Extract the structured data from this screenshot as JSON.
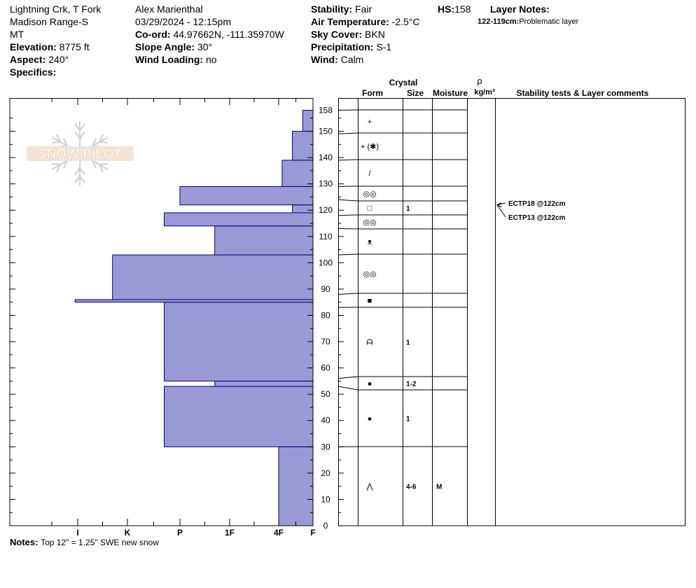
{
  "header": {
    "location_line1": "Lightning Crk, T Fork",
    "location_line2": "Madison Range-S",
    "state": "MT",
    "elevation_label": "Elevation:",
    "elevation_value": "8775 ft",
    "aspect_label": "Aspect:",
    "aspect_value": "240°",
    "specifics_label": "Specifics:",
    "observer": "Alex Marienthal",
    "datetime": "03/29/2024 - 12:15pm",
    "coord_label": "Co-ord:",
    "coord_value": "44.97662N, -111.35970W",
    "slope_label": "Slope Angle:",
    "slope_value": "30°",
    "wind_loading_label": "Wind Loading:",
    "wind_loading_value": "no",
    "stability_label": "Stability:",
    "stability_value": "Fair",
    "air_temp_label": "Air Temperature:",
    "air_temp_value": "-2.5°C",
    "sky_label": "Sky Cover:",
    "sky_value": "BKN",
    "precip_label": "Precipitation:",
    "precip_value": "S-1",
    "wind_label": "Wind:",
    "wind_value": "Calm",
    "hs_label": "HS:",
    "hs_value": "158",
    "layer_notes_label": "Layer Notes:",
    "layer_note_range": "122-119cm:",
    "layer_note_text": "Problematic layer"
  },
  "logo_text": "SNOW PILOT",
  "columns": {
    "crystal": "Crystal",
    "form": "Form",
    "size": "Size",
    "moisture": "Moisture",
    "rho": "ρ",
    "density_unit": "kg/m³",
    "stability": "Stability tests & Layer comments"
  },
  "notes_label": "Notes:",
  "notes_text": "Top 12\" = 1.25\" SWE new snow",
  "colors": {
    "fill": "#9999d6",
    "edge": "#000080"
  },
  "chart_data": {
    "type": "bar",
    "orientation": "horizontal",
    "x_categories": [
      "I",
      "K",
      "P",
      "1F",
      "4F",
      "F"
    ],
    "x_ticks": [
      5,
      4,
      3,
      2,
      1,
      0
    ],
    "y_range": [
      0,
      158
    ],
    "y_ticks": [
      0,
      10,
      20,
      30,
      40,
      50,
      60,
      70,
      80,
      90,
      100,
      110,
      120,
      130,
      140,
      150,
      158
    ],
    "ylabel": "",
    "layers": [
      {
        "bottom": 0,
        "top": 30,
        "hardness": 1.0
      },
      {
        "bottom": 30,
        "top": 53,
        "hardness": 3.3
      },
      {
        "bottom": 53,
        "top": 55,
        "hardness": 2.3
      },
      {
        "bottom": 55,
        "top": 85,
        "hardness": 3.3
      },
      {
        "bottom": 85,
        "top": 86,
        "hardness": 5.05
      },
      {
        "bottom": 86,
        "top": 103,
        "hardness": 4.3
      },
      {
        "bottom": 103,
        "top": 114,
        "hardness": 2.3
      },
      {
        "bottom": 114,
        "top": 119,
        "hardness": 3.3
      },
      {
        "bottom": 119,
        "top": 122,
        "hardness": 0.6
      },
      {
        "bottom": 122,
        "top": 129,
        "hardness": 3.0
      },
      {
        "bottom": 129,
        "top": 139,
        "hardness": 0.9
      },
      {
        "bottom": 139,
        "top": 150,
        "hardness": 0.6
      },
      {
        "bottom": 150,
        "top": 158,
        "hardness": 0.3
      }
    ],
    "crystal_layers": [
      {
        "bottom": 0,
        "top": 30,
        "form": "⋀",
        "size": "4-6",
        "moisture": "M"
      },
      {
        "bottom": 30,
        "top": 53,
        "form": "●",
        "size": "1",
        "moisture": ""
      },
      {
        "bottom": 53,
        "top": 56,
        "form": "●",
        "size": "1-2",
        "moisture": ""
      },
      {
        "bottom": 56,
        "top": 83,
        "form": "ᗩ",
        "size": "1",
        "moisture": ""
      },
      {
        "bottom": 83,
        "top": 88,
        "form": "■",
        "size": "",
        "moisture": ""
      },
      {
        "bottom": 88,
        "top": 103,
        "form": "◎◎",
        "size": "",
        "moisture": ""
      },
      {
        "bottom": 103,
        "top": 113,
        "form": "ᴥ",
        "size": "",
        "moisture": ""
      },
      {
        "bottom": 113,
        "top": 118,
        "form": "◎◎",
        "size": "",
        "moisture": ""
      },
      {
        "bottom": 118,
        "top": 124,
        "form": "□",
        "size": "1",
        "moisture": ""
      },
      {
        "bottom": 124,
        "top": 129,
        "form": "◎◎",
        "size": "",
        "moisture": ""
      },
      {
        "bottom": 129,
        "top": 139,
        "form": "/",
        "size": "",
        "moisture": ""
      },
      {
        "bottom": 139,
        "top": 149,
        "form": "+ (✱)",
        "size": "",
        "moisture": ""
      },
      {
        "bottom": 149,
        "top": 158,
        "form": "+",
        "size": "",
        "moisture": ""
      }
    ],
    "stability_tests": [
      {
        "label": "ECTP18 @122cm",
        "depth": 122
      },
      {
        "label": "ECTP13 @122cm",
        "depth": 122
      }
    ]
  }
}
